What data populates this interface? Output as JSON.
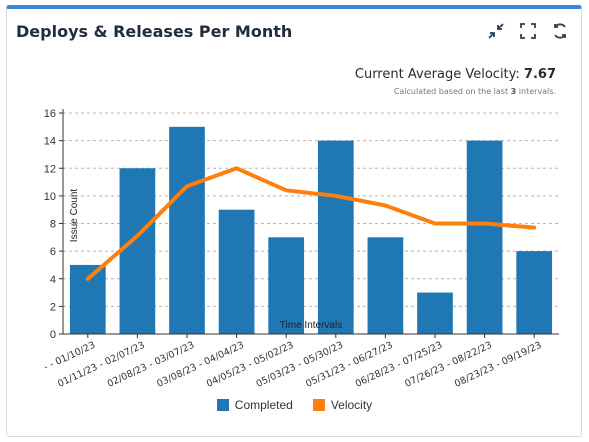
{
  "title": "Deploys & Releases Per Month",
  "icons": [
    "collapse-icon",
    "fullscreen-icon",
    "refresh-icon"
  ],
  "velocity": {
    "label": "Current Average Velocity:",
    "value": "7.67",
    "note_prefix": "Calculated based on the last",
    "note_count": "3",
    "note_suffix": "intervals."
  },
  "colors": {
    "completed": "#1f77b4",
    "velocity": "#ff7f0e",
    "accent": "#3b86d6"
  },
  "chart_data": {
    "type": "bar",
    "xlabel": "Time Intervals",
    "ylabel": "Issue Count",
    "ylim": [
      0,
      16
    ],
    "yticks": [
      0,
      2,
      4,
      6,
      8,
      10,
      12,
      14,
      16
    ],
    "grid": true,
    "legend_position": "bottom",
    "categories": [
      "- - 01/10/23",
      "01/11/23 - 02/07/23",
      "02/08/23 - 03/07/23",
      "03/08/23 - 04/04/23",
      "04/05/23 - 05/02/23",
      "05/03/23 - 05/30/23",
      "05/31/23 - 06/27/23",
      "06/28/23 - 07/25/23",
      "07/26/23 - 08/22/23",
      "08/23/23 - 09/19/23"
    ],
    "series": [
      {
        "name": "Completed",
        "type": "bar",
        "values": [
          5,
          12,
          15,
          9,
          7,
          14,
          7,
          3,
          14,
          6
        ]
      },
      {
        "name": "Velocity",
        "type": "line",
        "values": [
          4,
          7.1,
          10.7,
          12,
          10.4,
          10.0,
          9.3,
          8.0,
          8.0,
          7.7
        ]
      }
    ]
  }
}
